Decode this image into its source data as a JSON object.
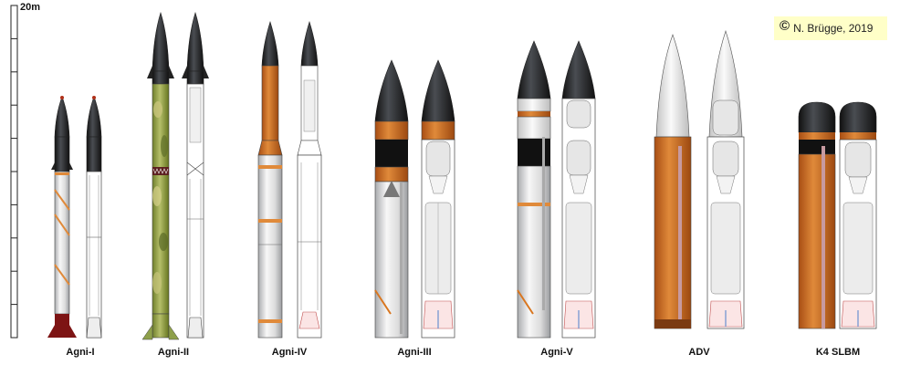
{
  "scale": {
    "label": "20m",
    "max_m": 20,
    "tick_step_m": 2
  },
  "credit": {
    "symbol": "©",
    "text": "N. Brügge, 2019"
  },
  "missiles": [
    {
      "name": "Agni-I"
    },
    {
      "name": "Agni-II"
    },
    {
      "name": "Agni-IV"
    },
    {
      "name": "Agni-III"
    },
    {
      "name": "Agni-V"
    },
    {
      "name": "ADV"
    },
    {
      "name": "K4 SLBM"
    }
  ],
  "colors": {
    "nose": "#2a2c30",
    "body_white": "#f2f2f2",
    "body_grey": "#c9cbce",
    "orange": "#d9761f",
    "rust": "#c45f1c",
    "camo_green": "#8ea04a",
    "black_band": "#111111",
    "outline": "#333333"
  }
}
